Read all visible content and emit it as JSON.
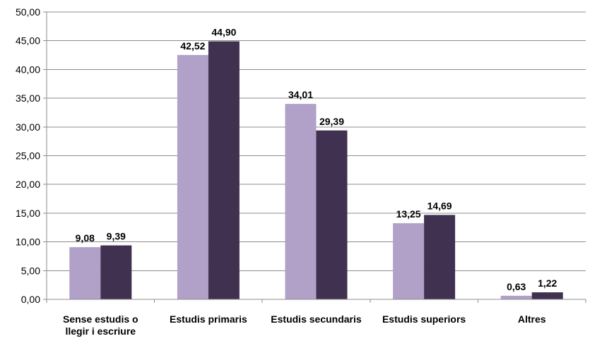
{
  "chart_data": {
    "type": "bar",
    "categories": [
      [
        "Sense estudis o",
        "llegir i escriure"
      ],
      [
        "Estudis primaris"
      ],
      [
        "Estudis secundaris"
      ],
      [
        "Estudis superiors"
      ],
      [
        "Altres"
      ]
    ],
    "series": [
      {
        "values": [
          9.08,
          42.52,
          34.01,
          13.25,
          0.63
        ],
        "color": "#b1a0c7",
        "labels": [
          "9,08",
          "42,52",
          "34,01",
          "13,25",
          "0,63"
        ]
      },
      {
        "values": [
          9.39,
          44.9,
          29.39,
          14.69,
          1.22
        ],
        "color": "#403151",
        "labels": [
          "9,39",
          "44,90",
          "29,39",
          "14,69",
          "1,22"
        ]
      }
    ],
    "ylim": [
      0,
      50
    ],
    "yticks": [
      "0,00",
      "5,00",
      "10,00",
      "15,00",
      "20,00",
      "25,00",
      "30,00",
      "35,00",
      "40,00",
      "45,00",
      "50,00"
    ],
    "ytick_values": [
      0,
      5,
      10,
      15,
      20,
      25,
      30,
      35,
      40,
      45,
      50
    ],
    "grid": true,
    "legend": false
  }
}
